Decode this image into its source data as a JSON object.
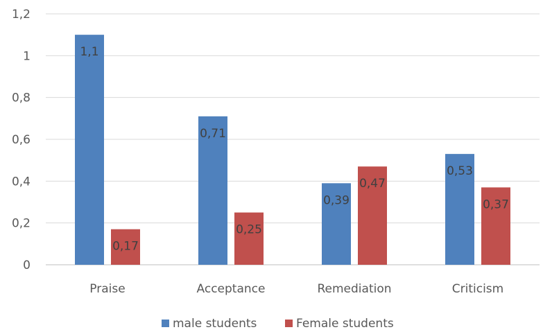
{
  "chart_data": {
    "type": "bar",
    "title": "",
    "xlabel": "",
    "ylabel": "",
    "categories": [
      "Praise",
      "Acceptance",
      "Remediation",
      "Criticism"
    ],
    "series": [
      {
        "name": "male students",
        "values": [
          1.1,
          0.71,
          0.39,
          0.53
        ],
        "labels": [
          "1,1",
          "0,71",
          "0,39",
          "0,53"
        ],
        "color": "#4f81bd"
      },
      {
        "name": "Female students",
        "values": [
          0.17,
          0.25,
          0.47,
          0.37
        ],
        "labels": [
          "0,17",
          "0,25",
          "0,47",
          "0,37"
        ],
        "color": "#c0504d"
      }
    ],
    "ylim": [
      0,
      1.2
    ],
    "yticks": [
      0,
      0.2,
      0.4,
      0.6,
      0.8,
      1.0,
      1.2
    ],
    "ytick_labels": [
      "0",
      "0,2",
      "0,4",
      "0,6",
      "0,8",
      "1",
      "1,2"
    ],
    "grid": true,
    "legend_position": "bottom",
    "colors": {
      "gridline": "#d9d9d9",
      "axis": "#bfbfbf"
    }
  }
}
